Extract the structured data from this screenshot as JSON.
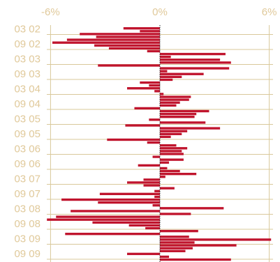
{
  "chart_data": {
    "type": "bar",
    "orientation": "horizontal",
    "title": "",
    "xlabel": "",
    "ylabel": "",
    "xlim": [
      -6.2,
      6.1
    ],
    "x_ticks": [
      -6,
      0,
      6
    ],
    "x_tick_labels": [
      "-6%",
      "0%",
      "6%"
    ],
    "y_tick_labels": [
      "03 02",
      "09 02",
      "03 03",
      "09 03",
      "03 04",
      "09 04",
      "03 05",
      "09 05",
      "03 06",
      "09 06",
      "03 07",
      "09 07",
      "03 08",
      "09 08",
      "03 09",
      "09 09"
    ],
    "grid": true,
    "bar_color": "#c0142d",
    "values": [
      -2.0,
      -1.1,
      -4.4,
      -3.5,
      -5.1,
      -5.9,
      -3.6,
      -2.8,
      -0.7,
      3.6,
      0.6,
      3.3,
      3.9,
      -3.4,
      3.8,
      0.4,
      2.4,
      1.2,
      0.7,
      -1.1,
      -0.6,
      -1.8,
      -0.3,
      0.2,
      1.7,
      1.6,
      1.1,
      0.9,
      -1.4,
      2.7,
      2.0,
      1.9,
      -0.6,
      2.5,
      -1.9,
      3.3,
      1.5,
      1.2,
      0.6,
      -2.9,
      -0.7,
      0.9,
      1.5,
      1.2,
      1.3,
      -0.4,
      1.3,
      0.5,
      -1.2,
      0.4,
      1.1,
      2.0,
      0.3,
      -0.9,
      -1.8,
      -0.9,
      0.8,
      -0.3,
      -3.3,
      -0.3,
      -5.4,
      -3.4,
      -0.4,
      3.5,
      -4.9,
      1.7,
      -5.7,
      -6.2,
      -3.7,
      -1.7,
      -0.8,
      2.1,
      -5.2,
      1.6,
      6.1,
      1.9,
      4.2,
      1.8,
      1.4,
      -1.8,
      0.5,
      3.9
    ]
  }
}
